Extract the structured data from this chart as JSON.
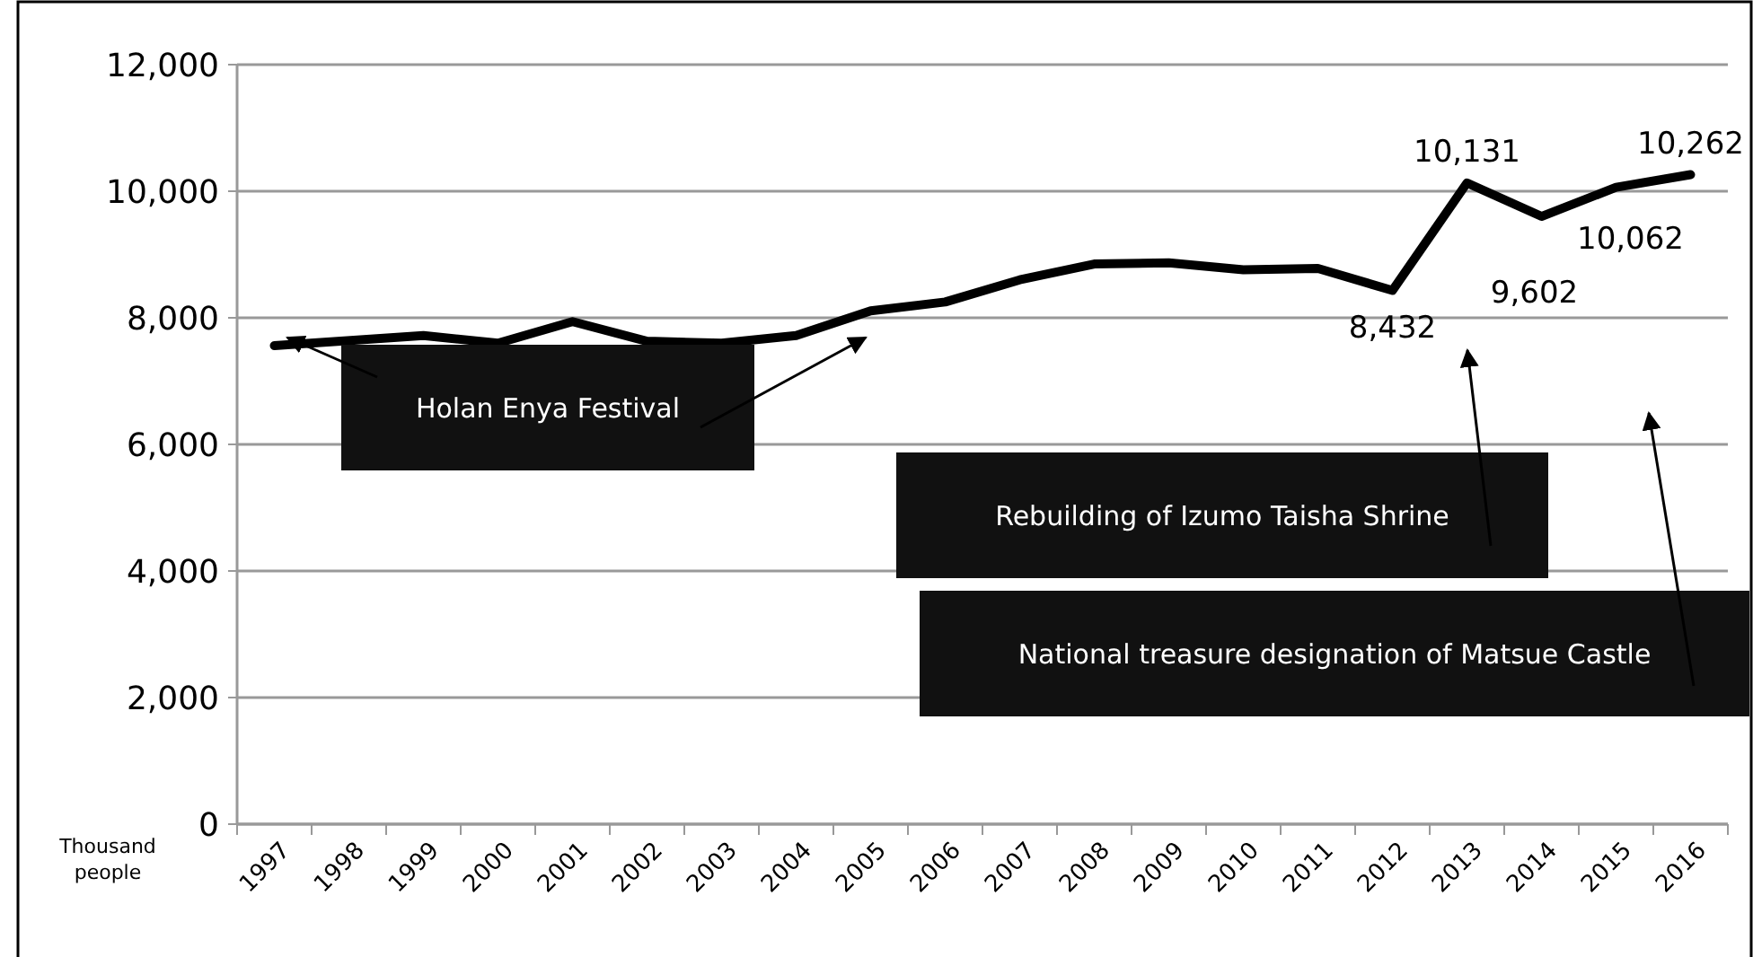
{
  "chart_data": {
    "type": "line",
    "ylabel": "Thousand people",
    "categories": [
      "1997",
      "1998",
      "1999",
      "2000",
      "2001",
      "2002",
      "2003",
      "2004",
      "2005",
      "2006",
      "2007",
      "2008",
      "2009",
      "2010",
      "2011",
      "2012",
      "2013",
      "2014",
      "2015",
      "2016"
    ],
    "series": [
      {
        "color": "#000000",
        "values": [
          7560,
          null,
          7720,
          7600,
          7940,
          7630,
          7600,
          7720,
          8110,
          8250,
          8600,
          8850,
          8870,
          8760,
          8780,
          8432,
          10131,
          9602,
          10062,
          10262
        ],
        "value_labels": [
          null,
          null,
          null,
          null,
          null,
          null,
          null,
          null,
          null,
          null,
          null,
          null,
          null,
          null,
          null,
          "8,432",
          "10,131",
          "9,602",
          "10,062",
          "10,262"
        ]
      }
    ],
    "ylim": [
      0,
      12000
    ],
    "yticks": [
      {
        "value": 0,
        "label": "0"
      },
      {
        "value": 2000,
        "label": "2,000"
      },
      {
        "value": 4000,
        "label": "4,000"
      },
      {
        "value": 6000,
        "label": "6,000"
      },
      {
        "value": 8000,
        "label": "8,000"
      },
      {
        "value": 10000,
        "label": "10,000"
      },
      {
        "value": 12000,
        "label": "12,000"
      }
    ],
    "grid": "y",
    "marker": "none",
    "line_style": "solid",
    "annotations": [
      "Holan Enya Festival",
      "Rebuilding of Izumo Taisha Shrine",
      "National treasure designation of Matsue Castle"
    ]
  }
}
